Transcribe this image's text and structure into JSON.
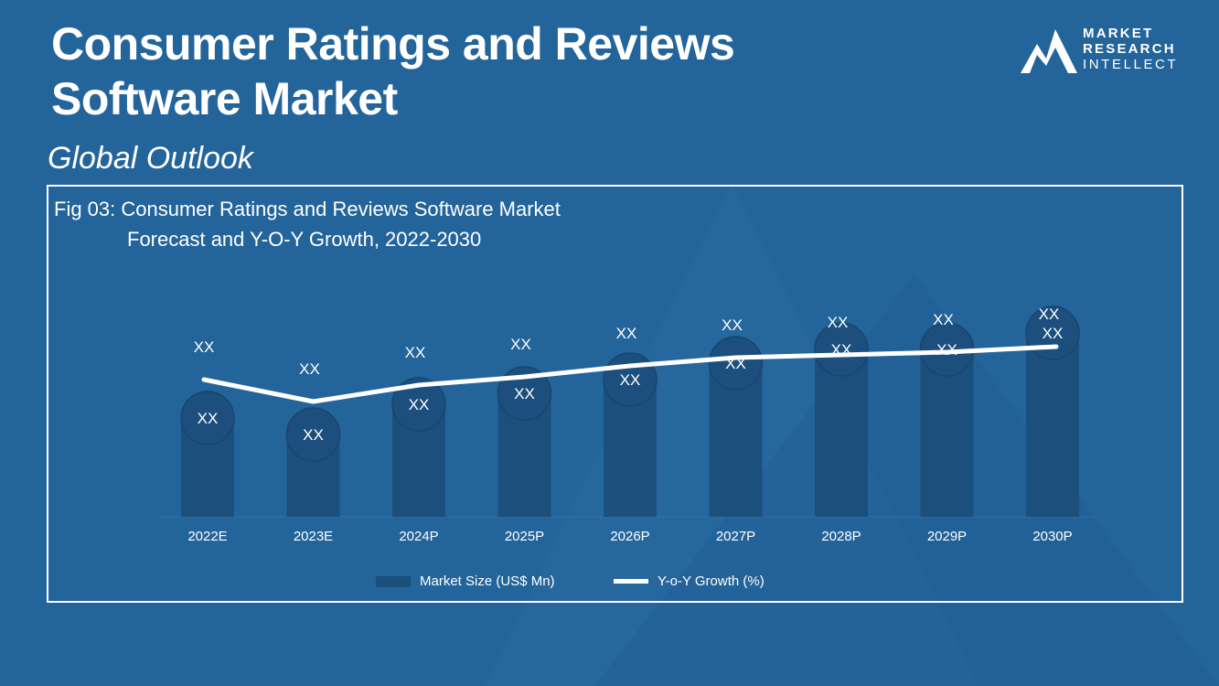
{
  "page": {
    "title_line1": "Consumer Ratings and Reviews",
    "title_line2": "Software Market",
    "subtitle": "Global Outlook"
  },
  "logo": {
    "line1": "MARKET",
    "line2": "RESEARCH",
    "line3": "INTELLECT",
    "icon": "mountain-logo-icon"
  },
  "figure": {
    "title_line1": "Fig 03: Consumer Ratings and Reviews Software Market",
    "title_line2": "Forecast and Y-O-Y Growth, 2022-2030"
  },
  "colors": {
    "background": "#23649a",
    "bar": "#1b4f7c",
    "bubble": "#1c4f7d",
    "line": "#ffffff"
  },
  "chart_data": {
    "type": "bar",
    "categories": [
      "2022E",
      "2023E",
      "2024P",
      "2025P",
      "2026P",
      "2027P",
      "2028P",
      "2029P",
      "2030P"
    ],
    "series": [
      {
        "name": "Market Size (US$ Mn)",
        "type": "bar",
        "values": [
          36,
          30,
          41,
          45,
          50,
          56,
          61,
          61,
          67
        ],
        "labels": [
          "XX",
          "XX",
          "XX",
          "XX",
          "XX",
          "XX",
          "XX",
          "XX",
          "XX"
        ]
      },
      {
        "name": "Y-o-Y Growth (%)",
        "type": "line",
        "values": [
          50,
          42,
          48,
          51,
          55,
          58,
          59,
          60,
          62
        ],
        "labels": [
          "XX",
          "XX",
          "XX",
          "XX",
          "XX",
          "XX",
          "XX",
          "XX",
          "XX"
        ]
      }
    ],
    "ylim": [
      0,
      100
    ],
    "grid": false,
    "legend": "bottom-center"
  }
}
